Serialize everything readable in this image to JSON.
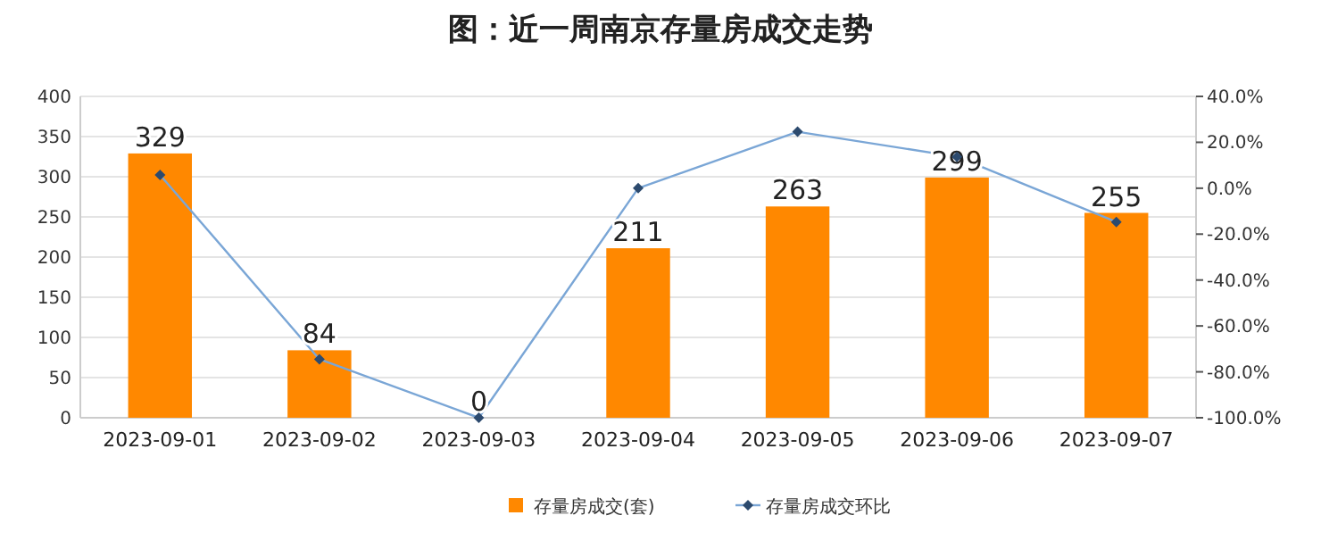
{
  "chart_data": {
    "type": "bar",
    "title": "图：近一周南京存量房成交走势",
    "categories": [
      "2023-09-01",
      "2023-09-02",
      "2023-09-03",
      "2023-09-04",
      "2023-09-05",
      "2023-09-06",
      "2023-09-07"
    ],
    "series": [
      {
        "name": "存量房成交(套)",
        "color": "#ff8800",
        "values": [
          329,
          84,
          0,
          211,
          263,
          299,
          255
        ],
        "value_labels": [
          "329",
          "84",
          "0",
          "211",
          "263",
          "299",
          "255"
        ]
      },
      {
        "name": "存量房成交环比",
        "type": "line",
        "axis": "y2",
        "color": "#7aa6d6",
        "marker": "diamond",
        "values": [
          5.8,
          -74.5,
          -100,
          0,
          24.6,
          13.7,
          -14.7
        ]
      }
    ],
    "ylim": [
      0,
      400
    ],
    "yticks": [
      0,
      50,
      100,
      150,
      200,
      250,
      300,
      350,
      400
    ],
    "y2lim": [
      -100,
      40
    ],
    "y2ticks": [
      {
        "value": -100,
        "label": "-100.0%"
      },
      {
        "value": -80,
        "label": "-80.0%"
      },
      {
        "value": -60,
        "label": "-60.0%"
      },
      {
        "value": -40,
        "label": "-40.0%"
      },
      {
        "value": -20,
        "label": "-20.0%"
      },
      {
        "value": 0,
        "label": "0.0%"
      },
      {
        "value": 20,
        "label": "20.0%"
      },
      {
        "value": 40,
        "label": "40.0%"
      }
    ],
    "grid": "y",
    "legend": "bottom"
  }
}
